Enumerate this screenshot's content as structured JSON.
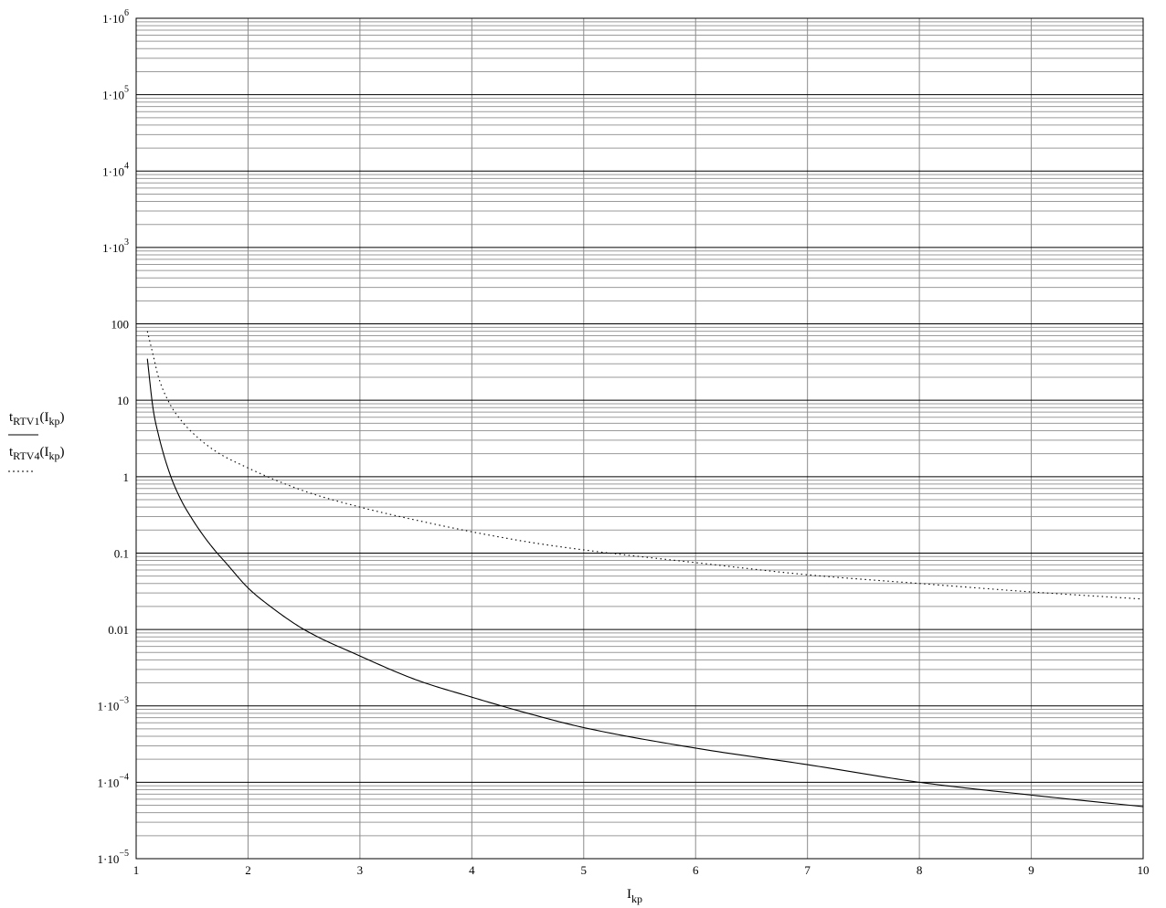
{
  "chart_data": {
    "type": "line",
    "x_scale": "linear",
    "y_scale": "log",
    "xlim": [
      1,
      10
    ],
    "ylim": [
      1e-05,
      1000000.0
    ],
    "grid": true,
    "x_ticks": [
      {
        "value": 1,
        "label": "1"
      },
      {
        "value": 2,
        "label": "2"
      },
      {
        "value": 3,
        "label": "3"
      },
      {
        "value": 4,
        "label": "4"
      },
      {
        "value": 5,
        "label": "5"
      },
      {
        "value": 6,
        "label": "6"
      },
      {
        "value": 7,
        "label": "7"
      },
      {
        "value": 8,
        "label": "8"
      },
      {
        "value": 9,
        "label": "9"
      },
      {
        "value": 10,
        "label": "10"
      }
    ],
    "y_ticks": [
      {
        "value": 1000000.0,
        "base": "1·10",
        "exp": "6"
      },
      {
        "value": 100000.0,
        "base": "1·10",
        "exp": "5"
      },
      {
        "value": 10000.0,
        "base": "1·10",
        "exp": "4"
      },
      {
        "value": 1000.0,
        "base": "1·10",
        "exp": "3"
      },
      {
        "value": 100,
        "base": "100",
        "exp": ""
      },
      {
        "value": 10,
        "base": "10",
        "exp": ""
      },
      {
        "value": 1,
        "base": "1",
        "exp": ""
      },
      {
        "value": 0.1,
        "base": "0.1",
        "exp": ""
      },
      {
        "value": 0.01,
        "base": "0.01",
        "exp": ""
      },
      {
        "value": 0.001,
        "base": "1·10",
        "exp": "−3"
      },
      {
        "value": 0.0001,
        "base": "1·10",
        "exp": "−4"
      },
      {
        "value": 1e-05,
        "base": "1·10",
        "exp": "−5"
      }
    ],
    "xlabel": {
      "main": "I",
      "sub": "kp"
    },
    "ylabel": [
      {
        "main": "t",
        "sub": "RTV1",
        "arg_main": "I",
        "arg_sub": "kp",
        "style": "solid"
      },
      {
        "main": "t",
        "sub": "RTV4",
        "arg_main": "I",
        "arg_sub": "kp",
        "style": "dotted"
      }
    ],
    "series": [
      {
        "style": "solid",
        "color": "#000000",
        "x": [
          1.1,
          1.15,
          1.2,
          1.3,
          1.4,
          1.5,
          1.6,
          1.7,
          1.8,
          2,
          2.2,
          2.5,
          3,
          3.5,
          4,
          4.5,
          5,
          6,
          7,
          8,
          9,
          10
        ],
        "y": [
          35,
          8,
          3.5,
          1.1,
          0.5,
          0.28,
          0.17,
          0.11,
          0.075,
          0.035,
          0.02,
          0.01,
          0.0045,
          0.0022,
          0.0013,
          0.0008,
          0.00052,
          0.00028,
          0.00017,
          0.0001,
          6.8e-05,
          4.8e-05
        ]
      },
      {
        "style": "dotted",
        "color": "#000000",
        "x": [
          1.1,
          1.15,
          1.2,
          1.3,
          1.4,
          1.5,
          1.7,
          2,
          2.5,
          3,
          3.5,
          4,
          4.5,
          5,
          6,
          7,
          8,
          9,
          10
        ],
        "y": [
          80,
          40,
          20,
          9,
          5.5,
          3.8,
          2.2,
          1.3,
          0.65,
          0.4,
          0.27,
          0.19,
          0.14,
          0.11,
          0.075,
          0.052,
          0.04,
          0.031,
          0.025
        ]
      }
    ]
  }
}
